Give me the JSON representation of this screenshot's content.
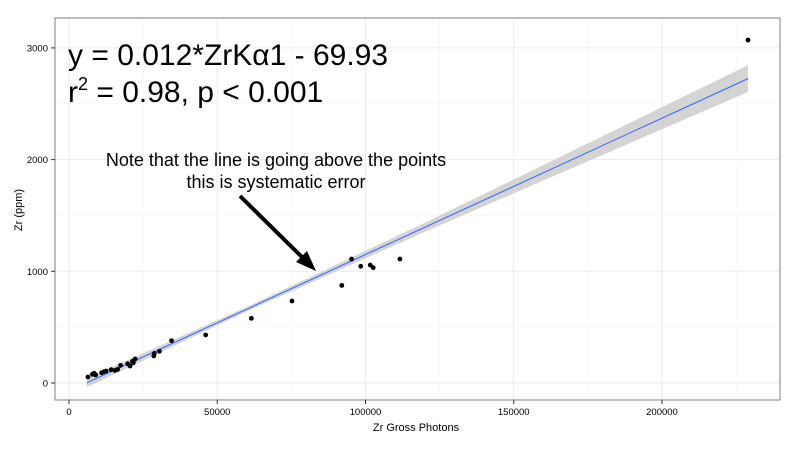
{
  "chart_data": {
    "type": "scatter",
    "title": "",
    "xlabel": "Zr Gross Photons",
    "ylabel": "Zr (ppm)",
    "xlim": [
      -4000,
      237000
    ],
    "ylim": [
      -150,
      3200
    ],
    "xticks": [
      0,
      50000,
      100000,
      150000,
      200000
    ],
    "xtick_labels": [
      "0",
      "50000",
      "100000",
      "150000",
      "200000"
    ],
    "yticks": [
      0,
      1000,
      2000,
      3000
    ],
    "ytick_labels": [
      "0",
      "1000",
      "2000",
      "3000"
    ],
    "grid": true,
    "points": [
      [
        6400,
        54
      ],
      [
        7900,
        78
      ],
      [
        8500,
        87
      ],
      [
        9000,
        72
      ],
      [
        11000,
        92
      ],
      [
        11800,
        101
      ],
      [
        12500,
        107
      ],
      [
        14200,
        119
      ],
      [
        15500,
        113
      ],
      [
        16400,
        122
      ],
      [
        17400,
        158
      ],
      [
        19800,
        172
      ],
      [
        20600,
        152
      ],
      [
        21400,
        194
      ],
      [
        21700,
        182
      ],
      [
        22300,
        215
      ],
      [
        28600,
        242
      ],
      [
        28800,
        266
      ],
      [
        30500,
        284
      ],
      [
        34600,
        379
      ],
      [
        46100,
        430
      ],
      [
        61500,
        579
      ],
      [
        75200,
        734
      ],
      [
        92000,
        874
      ],
      [
        95300,
        1110
      ],
      [
        98400,
        1045
      ],
      [
        101600,
        1056
      ],
      [
        102600,
        1032
      ],
      [
        111600,
        1110
      ],
      [
        229000,
        3070
      ]
    ],
    "fit_line": {
      "x": [
        6000,
        229000
      ],
      "y": [
        2,
        2725
      ]
    },
    "confidence_band_halfwidth": {
      "x": [
        6000,
        60000,
        120000,
        229000
      ],
      "y": [
        40,
        20,
        40,
        120
      ]
    },
    "colors": {
      "points": "#000000",
      "line": "#3366ff",
      "band": "#cccccc",
      "grid": "#ebebeb",
      "border": "#7f7f7f"
    },
    "annotations": {
      "equation_line1": "y = 0.012*ZrKα1 - 69.93",
      "equation_line2_prefix": "r",
      "equation_line2_sup": "2",
      "equation_line2_suffix": " = 0.98, p < 0.001",
      "note_line1": "Note that the line is going above the points",
      "note_line2": "this is systematic error"
    }
  }
}
